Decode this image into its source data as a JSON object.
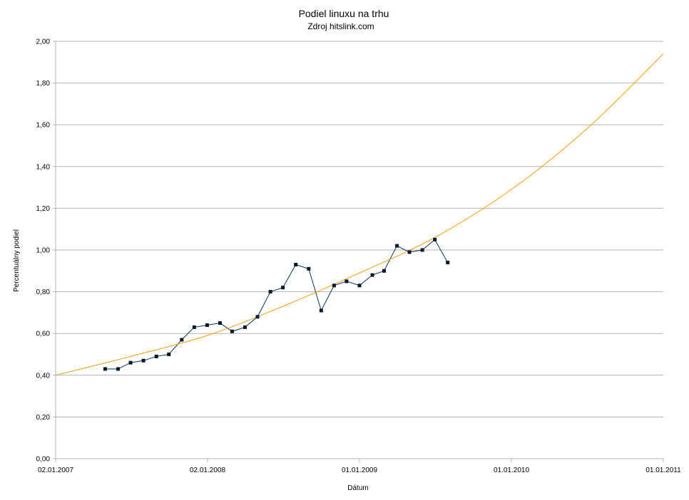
{
  "chart_data": {
    "type": "line",
    "title": "Podiel linuxu na trhu",
    "subtitle": "Zdroj hitslink.com",
    "xlabel": "Dátum",
    "ylabel": "Percentuálny podiel",
    "x_tick_labels": [
      "02.01.2007",
      "02.01.2008",
      "01.01.2009",
      "01.01.2010",
      "01.01.2011"
    ],
    "x_ticks": [
      "2007-01-02",
      "2008-01-02",
      "2009-01-01",
      "2010-01-01",
      "2011-01-01"
    ],
    "xlim": [
      "2007-01-02",
      "2011-01-01"
    ],
    "y_tick_labels": [
      "0,00",
      "0,20",
      "0,40",
      "0,60",
      "0,80",
      "1,00",
      "1,20",
      "1,40",
      "1,60",
      "1,80",
      "2,00"
    ],
    "ylim": [
      0,
      2
    ],
    "grid": "horizontal",
    "series": [
      {
        "color": "#003366",
        "marker": "square",
        "x": [
          "2007-05-01",
          "2007-06-01",
          "2007-07-01",
          "2007-08-01",
          "2007-09-01",
          "2007-10-01",
          "2007-11-01",
          "2007-12-01",
          "2008-01-01",
          "2008-02-01",
          "2008-03-01",
          "2008-04-01",
          "2008-05-01",
          "2008-06-01",
          "2008-07-01",
          "2008-08-01",
          "2008-09-01",
          "2008-10-01",
          "2008-11-01",
          "2008-12-01",
          "2009-01-01",
          "2009-02-01",
          "2009-03-01",
          "2009-04-01",
          "2009-05-01",
          "2009-06-01",
          "2009-07-01",
          "2009-08-01"
        ],
        "y": [
          0.43,
          0.43,
          0.46,
          0.47,
          0.49,
          0.5,
          0.57,
          0.63,
          0.64,
          0.65,
          0.61,
          0.63,
          0.68,
          0.8,
          0.82,
          0.93,
          0.91,
          0.71,
          0.83,
          0.85,
          0.83,
          0.88,
          0.9,
          1.02,
          0.99,
          1.0,
          1.05,
          0.94
        ]
      },
      {
        "color": "#ff9900",
        "marker": "none",
        "x": [
          "2007-01-02",
          "2007-07-01",
          "2008-01-01",
          "2008-07-01",
          "2009-01-01",
          "2009-07-01",
          "2010-01-01",
          "2010-07-01",
          "2011-01-01"
        ],
        "y": [
          0.4,
          0.49,
          0.59,
          0.73,
          0.89,
          1.06,
          1.29,
          1.58,
          1.94
        ]
      }
    ]
  }
}
